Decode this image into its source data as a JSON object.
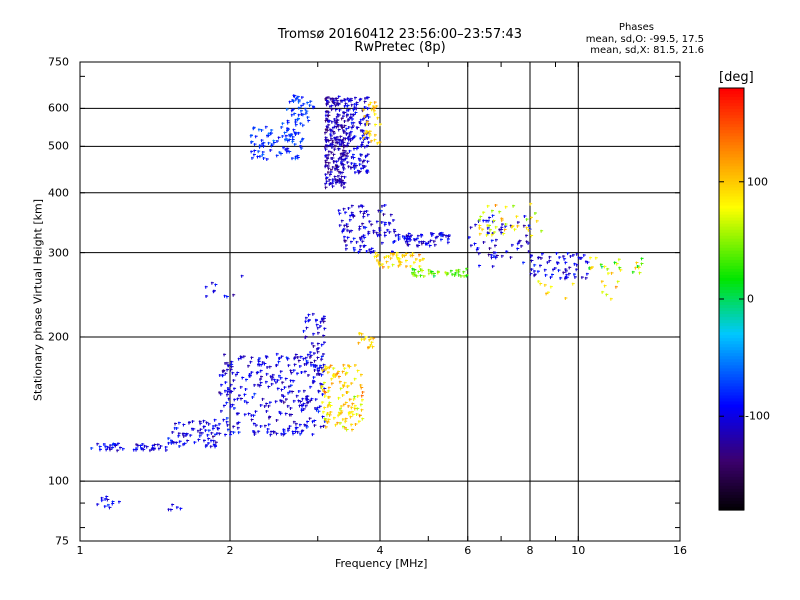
{
  "header": {
    "title_line1": "Tromsø 20160412 23:56:00–23:57:43",
    "title_line2": "RwPretec (8p)"
  },
  "phases_box": {
    "label": "Phases",
    "line1": "mean, sd,O: -99.5, 17.5",
    "line2": "mean, sd,X: 81.5, 21.6"
  },
  "colorbar": {
    "unit": "[deg]",
    "range": [
      -180,
      180
    ],
    "tick_labels": [
      "100",
      "0",
      "-100"
    ],
    "tick_values": [
      100,
      0,
      -100
    ]
  },
  "chart_data": {
    "type": "scatter",
    "xlabel": "Frequency [MHz]",
    "ylabel": "Stationary phase Virtual Height [km]",
    "xscale": "log",
    "yscale": "log",
    "xlim": [
      1,
      16
    ],
    "ylim": [
      75,
      750
    ],
    "x_ticks": [
      1,
      2,
      4,
      6,
      8,
      10,
      16
    ],
    "x_tick_labels": [
      "1",
      "2",
      "4",
      "6",
      "8",
      "10",
      "16"
    ],
    "y_ticks": [
      75,
      100,
      200,
      300,
      400,
      500,
      600,
      750
    ],
    "y_tick_labels": [
      "75",
      "100",
      "200",
      "300",
      "400",
      "500",
      "600",
      "750"
    ],
    "grid": true,
    "color_variable": "phase (deg)",
    "clusters": [
      {
        "f_range": [
          1.05,
          1.5
        ],
        "h_range": [
          116,
          120
        ],
        "phase_mean": -100,
        "phase_sd": 12,
        "n": 45
      },
      {
        "f_range": [
          1.5,
          1.9
        ],
        "h_range": [
          118,
          135
        ],
        "phase_mean": -100,
        "phase_sd": 12,
        "n": 70
      },
      {
        "f_range": [
          1.9,
          3.1
        ],
        "h_range": [
          125,
          185
        ],
        "phase_mean": -100,
        "phase_sd": 12,
        "n": 300
      },
      {
        "f_range": [
          2.8,
          3.1
        ],
        "h_range": [
          165,
          225
        ],
        "phase_mean": -105,
        "phase_sd": 12,
        "n": 50
      },
      {
        "f_range": [
          3.05,
          3.7
        ],
        "h_range": [
          128,
          175
        ],
        "phase_mean": 95,
        "phase_sd": 20,
        "n": 120
      },
      {
        "f_range": [
          3.6,
          3.9
        ],
        "h_range": [
          190,
          205
        ],
        "phase_mean": 95,
        "phase_sd": 12,
        "n": 15
      },
      {
        "f_range": [
          1.08,
          1.2
        ],
        "h_range": [
          88,
          93
        ],
        "phase_mean": -100,
        "phase_sd": 12,
        "n": 12
      },
      {
        "f_range": [
          1.5,
          1.62
        ],
        "h_range": [
          87,
          91
        ],
        "phase_mean": -100,
        "phase_sd": 12,
        "n": 5
      },
      {
        "f_range": [
          1.7,
          2.2
        ],
        "h_range": [
          238,
          270
        ],
        "phase_mean": -100,
        "phase_sd": 12,
        "n": 10
      },
      {
        "f_range": [
          2.2,
          2.8
        ],
        "h_range": [
          470,
          560
        ],
        "phase_mean": -75,
        "phase_sd": 10,
        "n": 90
      },
      {
        "f_range": [
          2.6,
          2.95
        ],
        "h_range": [
          560,
          640
        ],
        "phase_mean": -75,
        "phase_sd": 10,
        "n": 40
      },
      {
        "f_range": [
          3.1,
          3.4
        ],
        "h_range": [
          410,
          640
        ],
        "phase_mean": -115,
        "phase_sd": 12,
        "n": 220
      },
      {
        "f_range": [
          3.4,
          3.8
        ],
        "h_range": [
          440,
          640
        ],
        "phase_mean": -100,
        "phase_sd": 12,
        "n": 140
      },
      {
        "f_range": [
          3.7,
          4.0
        ],
        "h_range": [
          500,
          620
        ],
        "phase_mean": 105,
        "phase_sd": 12,
        "n": 30
      },
      {
        "f_range": [
          3.3,
          4.3
        ],
        "h_range": [
          300,
          380
        ],
        "phase_mean": -105,
        "phase_sd": 12,
        "n": 100
      },
      {
        "f_range": [
          4.3,
          5.5
        ],
        "h_range": [
          310,
          330
        ],
        "phase_mean": -100,
        "phase_sd": 12,
        "n": 60
      },
      {
        "f_range": [
          3.9,
          4.9
        ],
        "h_range": [
          280,
          300
        ],
        "phase_mean": 95,
        "phase_sd": 15,
        "n": 50
      },
      {
        "f_range": [
          4.6,
          6.0
        ],
        "h_range": [
          268,
          278
        ],
        "phase_mean": 40,
        "phase_sd": 15,
        "n": 40
      },
      {
        "f_range": [
          6.0,
          8.0
        ],
        "h_range": [
          280,
          360
        ],
        "phase_mean": -100,
        "phase_sd": 12,
        "n": 60
      },
      {
        "f_range": [
          6.3,
          8.5
        ],
        "h_range": [
          325,
          380
        ],
        "phase_mean": 70,
        "phase_sd": 25,
        "n": 40
      },
      {
        "f_range": [
          8.0,
          10.5
        ],
        "h_range": [
          265,
          300
        ],
        "phase_mean": -100,
        "phase_sd": 12,
        "n": 60
      },
      {
        "f_range": [
          10.5,
          13.5
        ],
        "h_range": [
          270,
          295
        ],
        "phase_mean": 60,
        "phase_sd": 30,
        "n": 25
      },
      {
        "f_range": [
          8.0,
          12.0
        ],
        "h_range": [
          240,
          265
        ],
        "phase_mean": 85,
        "phase_sd": 15,
        "n": 15
      }
    ]
  }
}
